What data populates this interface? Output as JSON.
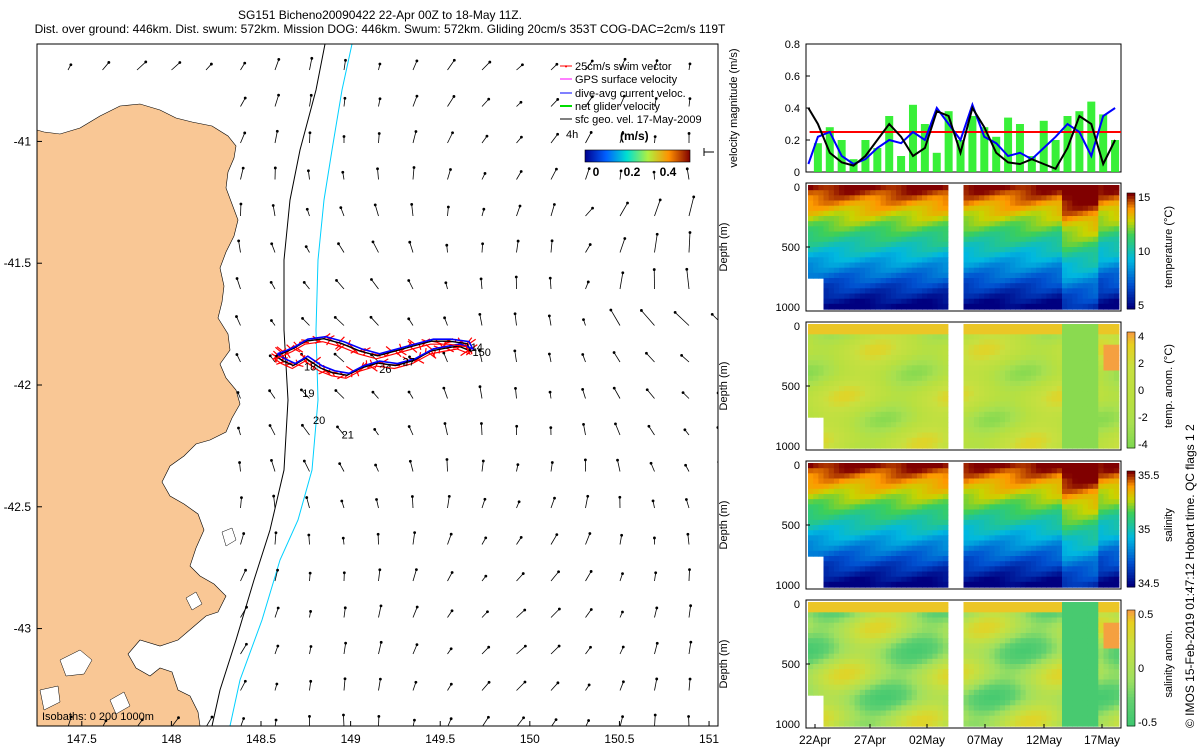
{
  "header": {
    "title": "SG151 Bicheno20090422 22-Apr 00Z to 18-May 11Z.",
    "subtitle": "Dist. over ground: 446km. Dist. swum: 572km. Mission DOG: 446km. Swum: 572km. Gliding 20cm/s 353T COG-DAC=2cm/s 119T"
  },
  "credit": "© IMOS 15-Feb-2019 01:47:12 Hobart time. QC flags 1  2",
  "colors": {
    "land": "#f9c795",
    "swim": "#ff0000",
    "gps": "#ff00ff",
    "dac": "#0000ff",
    "net": "#00dd00",
    "sfc": "#000000",
    "isobath": "#000000",
    "isobath2": "#00d0ff"
  },
  "chart_data": [
    {
      "type": "map",
      "xlim": [
        147.25,
        151.05
      ],
      "ylim": [
        -43.4,
        -40.6
      ],
      "x_ticks": [
        147.5,
        148,
        148.5,
        149,
        149.5,
        150,
        150.5,
        151
      ],
      "x_tick_labels": [
        "147.5",
        "148",
        "148.5",
        "149",
        "149.5",
        "150",
        "150.5",
        "151"
      ],
      "y_ticks": [
        -41,
        -41.5,
        -42,
        -42.5,
        -43
      ],
      "y_tick_labels": [
        "-41",
        "-41.5",
        "-42",
        "-42.5",
        "-43"
      ],
      "legend": {
        "placement": "top-right",
        "entries": [
          "25cm/s swim vector",
          "GPS surface velocity",
          "dive-avg current veloc.",
          "net glider velocity",
          "sfc geo. vel. 17-May-2009"
        ],
        "scale_label": "4h",
        "units": "(m/s)",
        "colorbar_ticks": [
          "0",
          "0.2",
          "0.4"
        ]
      },
      "isobaths_label": "Isobaths: 0    200    1000m",
      "day_labels": [
        {
          "text": "14",
          "lon": 149.67,
          "lat": -41.86
        },
        {
          "text": "150",
          "lon": 149.68,
          "lat": -41.88
        },
        {
          "text": "18",
          "lon": 148.74,
          "lat": -41.94
        },
        {
          "text": "19",
          "lon": 148.73,
          "lat": -42.05
        },
        {
          "text": "20",
          "lon": 148.79,
          "lat": -42.16
        },
        {
          "text": "21",
          "lon": 148.95,
          "lat": -42.22
        },
        {
          "text": "27",
          "lon": 149.29,
          "lat": -41.92
        },
        {
          "text": "26",
          "lon": 149.16,
          "lat": -41.95
        }
      ],
      "track_lon": [
        148.58,
        148.62,
        148.68,
        148.75,
        148.83,
        148.9,
        148.98,
        149.06,
        149.15,
        149.25,
        149.35,
        149.45,
        149.52,
        149.6,
        149.67,
        149.65,
        149.55,
        149.45,
        149.35,
        149.25,
        149.15,
        149.05,
        148.95,
        148.85,
        148.75,
        148.68,
        148.62,
        148.58
      ],
      "track_lat": [
        -41.88,
        -41.9,
        -41.92,
        -41.89,
        -41.93,
        -41.95,
        -41.96,
        -41.93,
        -41.91,
        -41.92,
        -41.9,
        -41.86,
        -41.85,
        -41.84,
        -41.86,
        -41.83,
        -41.82,
        -41.82,
        -41.84,
        -41.86,
        -41.88,
        -41.86,
        -41.83,
        -41.81,
        -41.82,
        -41.85,
        -41.87,
        -41.88
      ]
    },
    {
      "type": "line",
      "ylabel": "velocity magnitude (m/s)",
      "ylim": [
        0,
        0.8
      ],
      "y_ticks": [
        0,
        0.2,
        0.4,
        0.6,
        0.8
      ],
      "y_tick_labels": [
        "0",
        "0.2",
        "0.4",
        "0.6",
        "0.8"
      ],
      "xlim": [
        0,
        26.5
      ],
      "reference_level": 0.25,
      "series": [
        {
          "color": "#00dd00",
          "x": [
            1,
            2,
            3,
            4,
            5,
            6,
            7,
            8,
            9,
            10,
            11,
            12,
            13,
            14,
            15,
            16,
            17,
            18,
            19,
            20,
            21,
            22,
            23,
            24,
            25,
            26
          ],
          "values": [
            0.18,
            0.28,
            0.2,
            0.08,
            0.2,
            0.15,
            0.35,
            0.1,
            0.42,
            0.3,
            0.12,
            0.38,
            0.2,
            0.35,
            0.28,
            0.22,
            0.34,
            0.3,
            0.1,
            0.32,
            0.2,
            0.35,
            0.38,
            0.44,
            0.36,
            0.2
          ]
        },
        {
          "color": "#0000ff",
          "x": [
            0.2,
            1,
            2,
            3,
            4,
            5,
            6,
            7,
            8,
            9,
            10,
            11,
            12,
            13,
            14,
            15,
            16,
            17,
            18,
            19,
            20,
            21,
            22,
            23,
            24,
            25,
            26
          ],
          "values": [
            0.05,
            0.22,
            0.25,
            0.1,
            0.05,
            0.08,
            0.15,
            0.2,
            0.18,
            0.25,
            0.2,
            0.4,
            0.3,
            0.2,
            0.42,
            0.22,
            0.18,
            0.1,
            0.12,
            0.08,
            0.15,
            0.22,
            0.3,
            0.25,
            0.1,
            0.35,
            0.4
          ]
        },
        {
          "color": "#000000",
          "x": [
            0.2,
            1,
            2,
            3,
            4,
            5,
            6,
            7,
            8,
            9,
            10,
            11,
            12,
            13,
            14,
            15,
            16,
            17,
            18,
            19,
            20,
            21,
            22,
            23,
            24,
            25,
            26
          ],
          "values": [
            0.4,
            0.3,
            0.12,
            0.06,
            0.04,
            0.1,
            0.2,
            0.3,
            0.22,
            0.1,
            0.15,
            0.38,
            0.35,
            0.12,
            0.4,
            0.28,
            0.12,
            0.06,
            0.05,
            0.08,
            0.05,
            0.02,
            0.15,
            0.35,
            0.3,
            0.05,
            0.2
          ]
        }
      ]
    },
    {
      "type": "heatmap",
      "panels": [
        {
          "cbar_label": "temperature (°C)",
          "cbar_ticks": [
            "15",
            "10",
            "5"
          ],
          "ramp": [
            [
              "#800000",
              0
            ],
            [
              "#ff9800",
              0.13
            ],
            [
              "#c8d400",
              0.24
            ],
            [
              "#3ccf5a",
              0.36
            ],
            [
              "#00b8e0",
              0.58
            ],
            [
              "#0050d0",
              0.8
            ],
            [
              "#000080",
              1.0
            ]
          ]
        },
        {
          "cbar_label": "temp. anom. (°C)",
          "cbar_ticks": [
            "4",
            "2",
            "0",
            "-2",
            "-4"
          ],
          "ramp": [
            [
              "#f5a040",
              0
            ],
            [
              "#e8d020",
              0.1
            ],
            [
              "#c8e040",
              0.3
            ],
            [
              "#b8e040",
              0.6
            ],
            [
              "#a8e050",
              0.8
            ],
            [
              "#80d850",
              1.0
            ]
          ]
        },
        {
          "cbar_label": "salinity",
          "cbar_ticks": [
            "35.5",
            "35",
            "34.5"
          ],
          "ramp": [
            [
              "#800000",
              0
            ],
            [
              "#ff9800",
              0.12
            ],
            [
              "#c8d400",
              0.24
            ],
            [
              "#3ccf5a",
              0.36
            ],
            [
              "#00b8e0",
              0.58
            ],
            [
              "#0050d0",
              0.8
            ],
            [
              "#000080",
              1.0
            ]
          ]
        },
        {
          "cbar_label": "salinity anom.",
          "cbar_ticks": [
            "0.5",
            "0",
            "-0.5"
          ],
          "ramp": [
            [
              "#f5a040",
              0
            ],
            [
              "#e8d020",
              0.1
            ],
            [
              "#c8e040",
              0.3
            ],
            [
              "#a0e060",
              0.6
            ],
            [
              "#60d070",
              0.8
            ],
            [
              "#40c870",
              1.0
            ]
          ]
        }
      ],
      "ylabel": "Depth (m)",
      "y_ticks": [
        0,
        500,
        1000
      ],
      "y_tick_labels": [
        "0",
        "500",
        "1000"
      ],
      "x_tick_labels": [
        "22Apr",
        "27Apr",
        "02May",
        "07May",
        "12May",
        "17May"
      ]
    }
  ]
}
